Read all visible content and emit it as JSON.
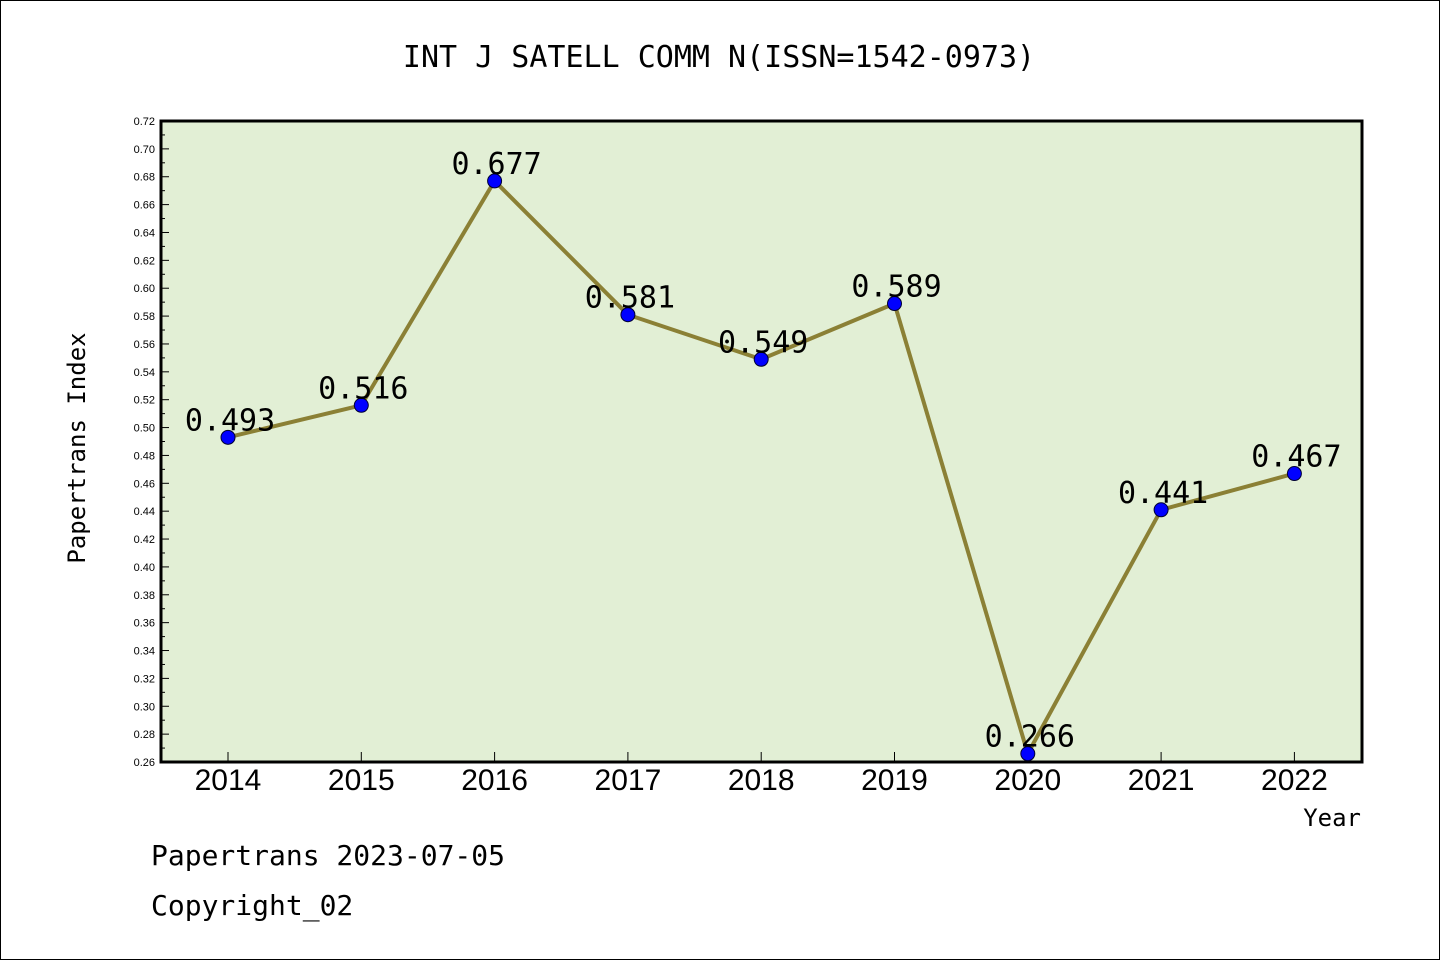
{
  "chart_data": {
    "type": "line",
    "title": "INT J SATELL COMM N(ISSN=1542-0973)",
    "xlabel": "Year",
    "ylabel": "Papertrans Index",
    "categories": [
      "2014",
      "2015",
      "2016",
      "2017",
      "2018",
      "2019",
      "2020",
      "2021",
      "2022"
    ],
    "series": [
      {
        "values": [
          0.493,
          0.516,
          0.677,
          0.581,
          0.549,
          0.589,
          0.266,
          0.441,
          0.467
        ],
        "labels": [
          "0.493",
          "0.516",
          "0.677",
          "0.581",
          "0.549",
          "0.589",
          "0.266",
          "0.441",
          "0.467"
        ]
      }
    ],
    "ylim": [
      0.26,
      0.72
    ],
    "yticks": [
      "0.26",
      "0.28",
      "0.30",
      "0.32",
      "0.34",
      "0.36",
      "0.38",
      "0.40",
      "0.42",
      "0.44",
      "0.46",
      "0.48",
      "0.50",
      "0.52",
      "0.54",
      "0.56",
      "0.58",
      "0.60",
      "0.62",
      "0.64",
      "0.66",
      "0.68",
      "0.70",
      "0.72"
    ],
    "grid": false,
    "colors": {
      "plot_background": "#e2efd5",
      "line": "#8b8035",
      "marker": "#0000ff"
    }
  },
  "footer": {
    "line1": "Papertrans 2023-07-05",
    "line2": "Copyright_02"
  }
}
